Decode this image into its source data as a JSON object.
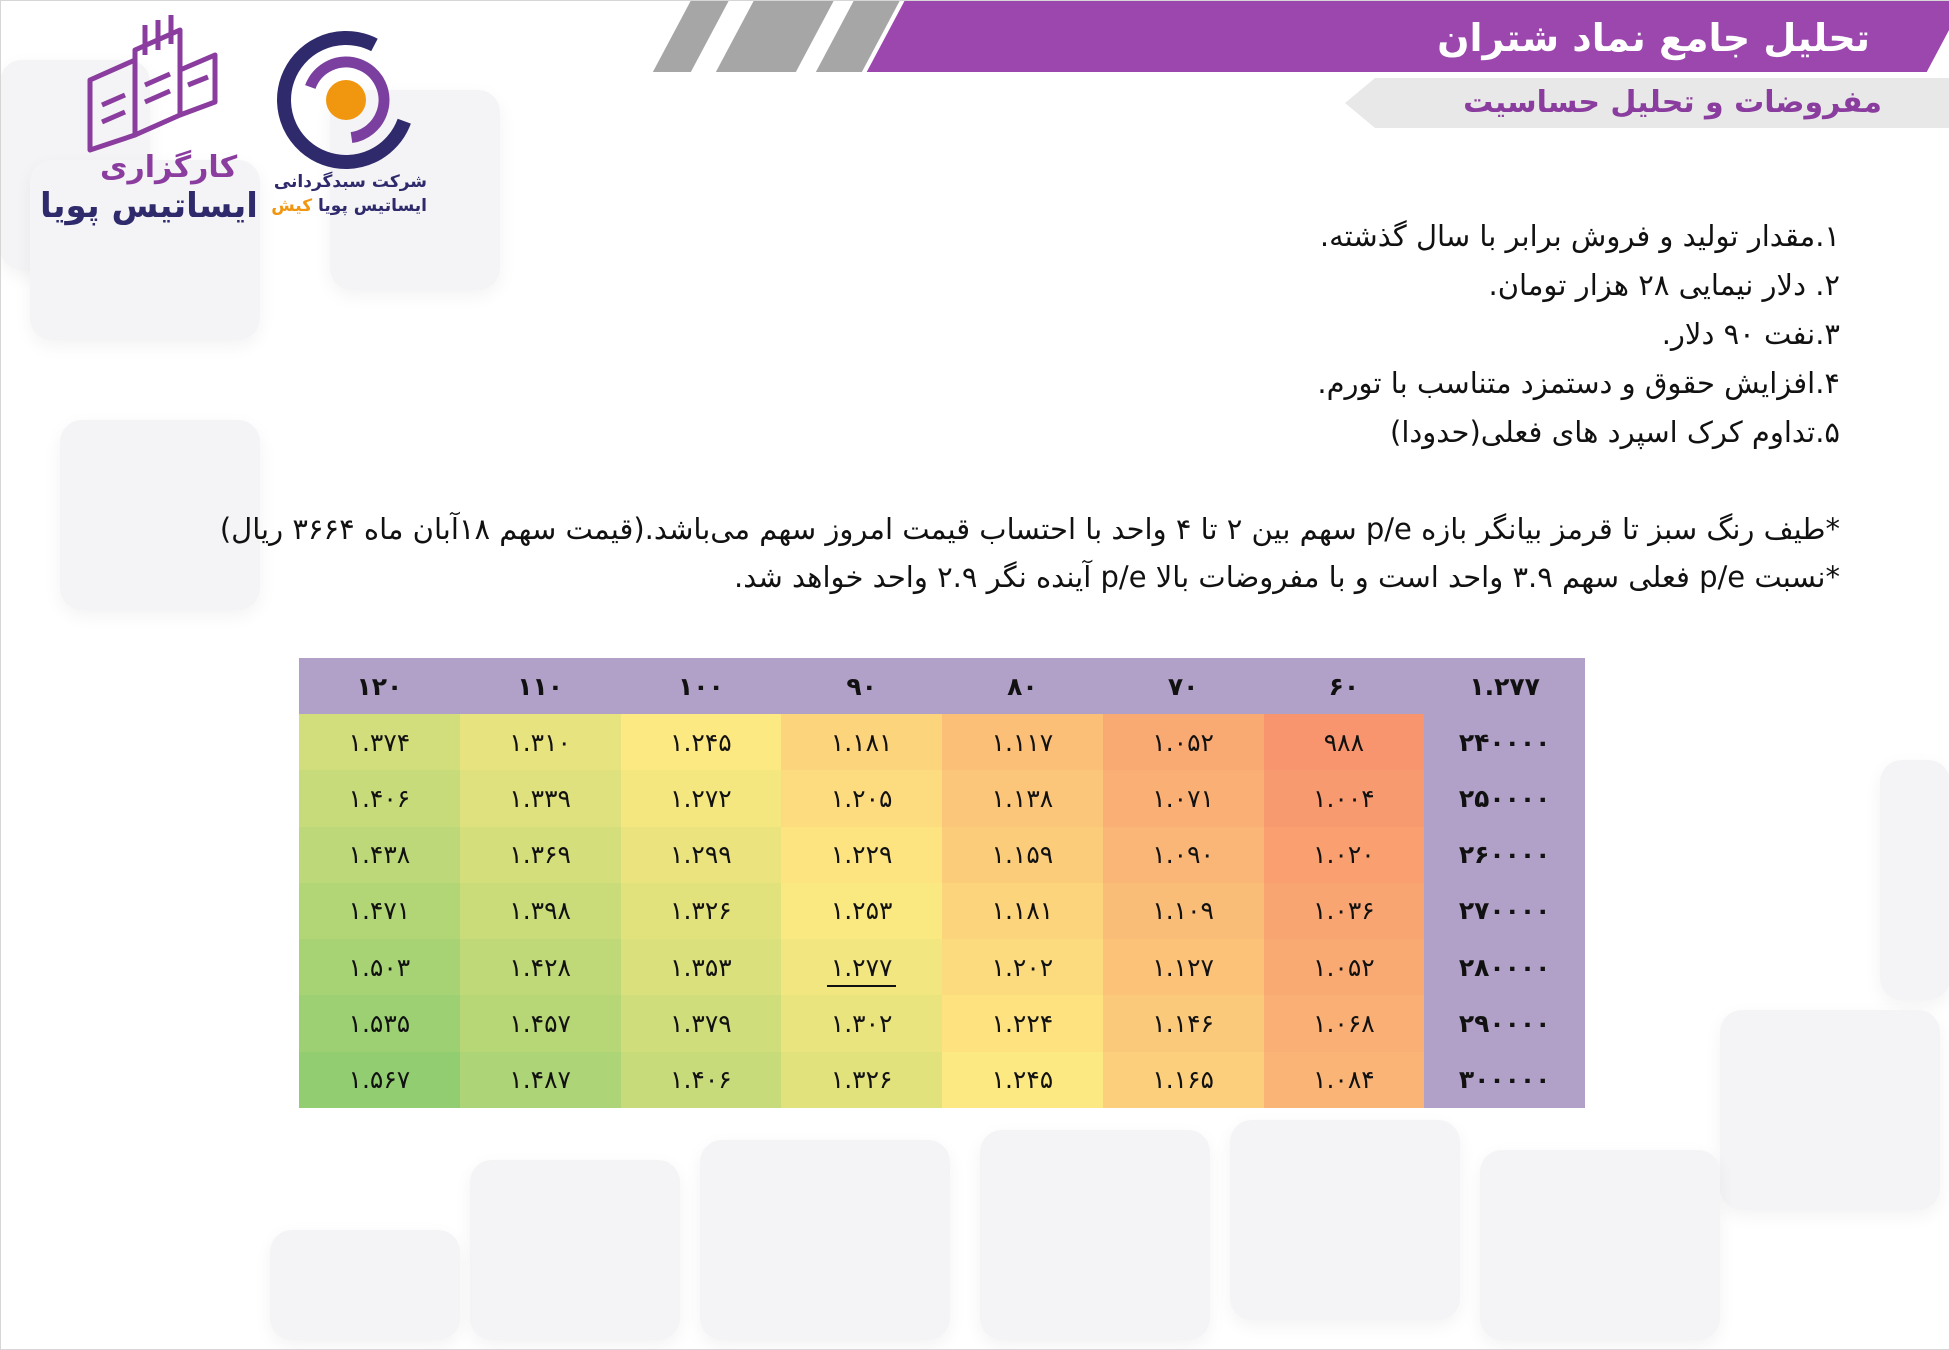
{
  "header": {
    "title": "تحلیل جامع نماد شتران",
    "subtitle": "مفروضات و تحلیل حساسیت"
  },
  "logos": {
    "broker": {
      "line1": "کارگزاری",
      "line2": "ایساتیس پویا"
    },
    "fund": {
      "line1": "شرکت سبدگردانی",
      "line2_a": "ایساتیس پویا",
      "line2_b": "کیش"
    }
  },
  "assumptions": [
    "۱.مقدار تولید و فروش برابر با سال گذشته.",
    "۲. دلار نیمایی ۲۸ هزار تومان.",
    "۳.نفت ۹۰ دلار.",
    "۴.افزایش حقوق و دستمزد متناسب با تورم.",
    "۵.تداوم کرک اسپرد های فعلی(حدودا)"
  ],
  "notes": [
    "*طیف رنگ سبز تا قرمز بیانگر بازه p/e سهم بین ۲ تا ۴ واحد با احتساب قیمت امروز سهم می‌باشد.(قیمت سهم ۱۸آبان ماه ۳۶۶۴ ریال)",
    "*نسبت p/e فعلی سهم ۳.۹ واحد است و با مفروضات بالا p/e آینده نگر ۲.۹ واحد خواهد شد."
  ],
  "colors": {
    "banner": "#9b47ad",
    "subtitle_text": "#8a3d9e",
    "table_header": "#b1a0c7",
    "heat_low": "#f8956e",
    "heat_mid": "#fde981",
    "heat_high": "#92cd72"
  },
  "chart_data": {
    "type": "table",
    "corner_label": "۱.۲۷۷",
    "column_headers": [
      "۶۰",
      "۷۰",
      "۸۰",
      "۹۰",
      "۱۰۰",
      "۱۱۰",
      "۱۲۰"
    ],
    "columns_numeric": [
      60,
      70,
      80,
      90,
      100,
      110,
      120
    ],
    "row_headers": [
      "۲۴۰۰۰۰",
      "۲۵۰۰۰۰",
      "۲۶۰۰۰۰",
      "۲۷۰۰۰۰",
      "۲۸۰۰۰۰",
      "۲۹۰۰۰۰",
      "۳۰۰۰۰۰"
    ],
    "rows_numeric": [
      240000,
      250000,
      260000,
      270000,
      280000,
      290000,
      300000
    ],
    "cells": [
      [
        "۹۸۸",
        "۱.۰۵۲",
        "۱.۱۱۷",
        "۱.۱۸۱",
        "۱.۲۴۵",
        "۱.۳۱۰",
        "۱.۳۷۴"
      ],
      [
        "۱.۰۰۴",
        "۱.۰۷۱",
        "۱.۱۳۸",
        "۱.۲۰۵",
        "۱.۲۷۲",
        "۱.۳۳۹",
        "۱.۴۰۶"
      ],
      [
        "۱.۰۲۰",
        "۱.۰۹۰",
        "۱.۱۵۹",
        "۱.۲۲۹",
        "۱.۲۹۹",
        "۱.۳۶۹",
        "۱.۴۳۸"
      ],
      [
        "۱.۰۳۶",
        "۱.۱۰۹",
        "۱.۱۸۱",
        "۱.۲۵۳",
        "۱.۳۲۶",
        "۱.۳۹۸",
        "۱.۴۷۱"
      ],
      [
        "۱.۰۵۲",
        "۱.۱۲۷",
        "۱.۲۰۲",
        "۱.۲۷۷",
        "۱.۳۵۳",
        "۱.۴۲۸",
        "۱.۵۰۳"
      ],
      [
        "۱.۰۶۸",
        "۱.۱۴۶",
        "۱.۲۲۴",
        "۱.۳۰۲",
        "۱.۳۷۹",
        "۱.۴۵۷",
        "۱.۵۳۵"
      ],
      [
        "۱.۰۸۴",
        "۱.۱۶۵",
        "۱.۲۴۵",
        "۱.۳۲۶",
        "۱.۴۰۶",
        "۱.۴۸۷",
        "۱.۵۶۷"
      ]
    ],
    "values_numeric": [
      [
        988,
        1052,
        1117,
        1181,
        1245,
        1310,
        1374
      ],
      [
        1004,
        1071,
        1138,
        1205,
        1272,
        1339,
        1406
      ],
      [
        1020,
        1090,
        1159,
        1229,
        1299,
        1369,
        1438
      ],
      [
        1036,
        1109,
        1181,
        1253,
        1326,
        1398,
        1471
      ],
      [
        1052,
        1127,
        1202,
        1277,
        1353,
        1428,
        1503
      ],
      [
        1068,
        1146,
        1224,
        1302,
        1379,
        1457,
        1535
      ],
      [
        1084,
        1165,
        1245,
        1326,
        1406,
        1487,
        1567
      ]
    ],
    "highlighted_cell": [
      4,
      3
    ]
  }
}
